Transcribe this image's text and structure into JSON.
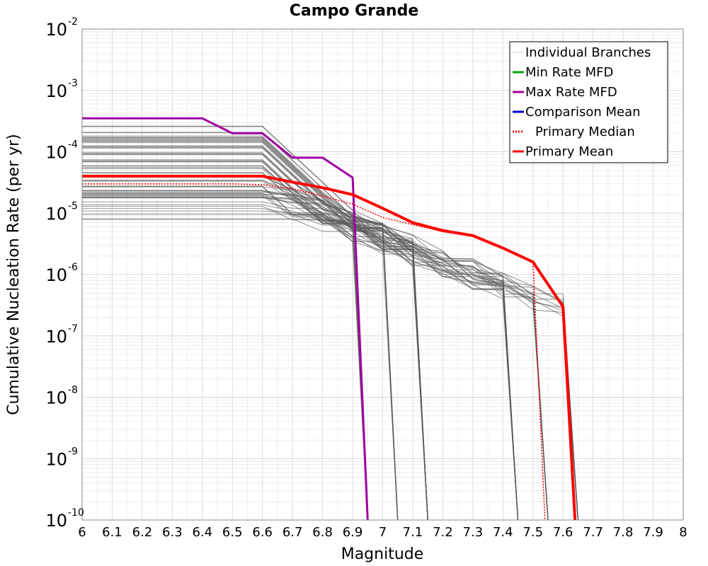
{
  "chart_data": {
    "type": "line",
    "title": "Campo Grande",
    "xlabel": "Magnitude",
    "ylabel": "Cumulative Nucleation Rate (per yr)",
    "xlim": [
      6,
      8
    ],
    "ylim_log10": [
      -10,
      -2
    ],
    "y_scale": "log",
    "x_ticks": [
      "6",
      "6.1",
      "6.2",
      "6.3",
      "6.4",
      "6.5",
      "6.6",
      "6.7",
      "6.8",
      "6.9",
      "7",
      "7.1",
      "7.2",
      "7.3",
      "7.4",
      "7.5",
      "7.6",
      "7.7",
      "7.8",
      "7.9",
      "8"
    ],
    "y_ticks": [
      {
        "base": "10",
        "exp": "-2"
      },
      {
        "base": "10",
        "exp": "-3"
      },
      {
        "base": "10",
        "exp": "-4"
      },
      {
        "base": "10",
        "exp": "-5"
      },
      {
        "base": "10",
        "exp": "-6"
      },
      {
        "base": "10",
        "exp": "-7"
      },
      {
        "base": "10",
        "exp": "-8"
      },
      {
        "base": "10",
        "exp": "-9"
      },
      {
        "base": "10",
        "exp": "-10"
      }
    ],
    "grid": true,
    "legend_position": "top-right",
    "legend": [
      {
        "label": "Individual Branches",
        "color": "#c8c8c8",
        "style": "solid"
      },
      {
        "label": "Min Rate MFD",
        "color": "#00aa00",
        "style": "solid"
      },
      {
        "label": "Max Rate MFD",
        "color": "#a000a0",
        "style": "solid"
      },
      {
        "label": "Comparison Mean",
        "color": "#0000cc",
        "style": "solid"
      },
      {
        "label": "Primary Median",
        "color": "#ff0000",
        "style": "dotted"
      },
      {
        "label": "Primary Mean",
        "color": "#ff0000",
        "style": "solid"
      }
    ],
    "branch_settings": {
      "count": 60,
      "color": "#555555",
      "low_rate": 8e-06,
      "high_rate": 0.00027,
      "cutoff_magnitudes": [
        6.95,
        7.05,
        7.15,
        7.45,
        7.55,
        7.65
      ]
    },
    "series": [
      {
        "name": "Max Rate MFD",
        "color": "#a000a0",
        "x": [
          6.0,
          6.4,
          6.5,
          6.6,
          6.7,
          6.8,
          6.9,
          6.95
        ],
        "y": [
          0.00035,
          0.00035,
          0.0002,
          0.0002,
          8e-05,
          8e-05,
          3.8e-05,
          1e-10
        ]
      },
      {
        "name": "Primary Median",
        "color": "#ff0000",
        "style": "dotted",
        "x": [
          6.0,
          6.5,
          6.6,
          6.7,
          6.8,
          6.9,
          7.0,
          7.1,
          7.2,
          7.3,
          7.4,
          7.5,
          7.54
        ],
        "y": [
          3e-05,
          3e-05,
          2.9e-05,
          2.5e-05,
          1.9e-05,
          1.4e-05,
          8.5e-06,
          6.5e-06,
          5e-06,
          4.2e-06,
          2.7e-06,
          1.6e-06,
          1e-10
        ]
      },
      {
        "name": "Primary Mean",
        "color": "#ff0000",
        "x": [
          6.0,
          6.6,
          6.7,
          6.8,
          6.9,
          7.0,
          7.1,
          7.2,
          7.3,
          7.4,
          7.5,
          7.6,
          7.64
        ],
        "y": [
          4e-05,
          4e-05,
          3.2e-05,
          2.6e-05,
          2e-05,
          1.2e-05,
          7e-06,
          5.2e-06,
          4.3e-06,
          2.7e-06,
          1.6e-06,
          3e-07,
          1e-10
        ]
      }
    ]
  }
}
